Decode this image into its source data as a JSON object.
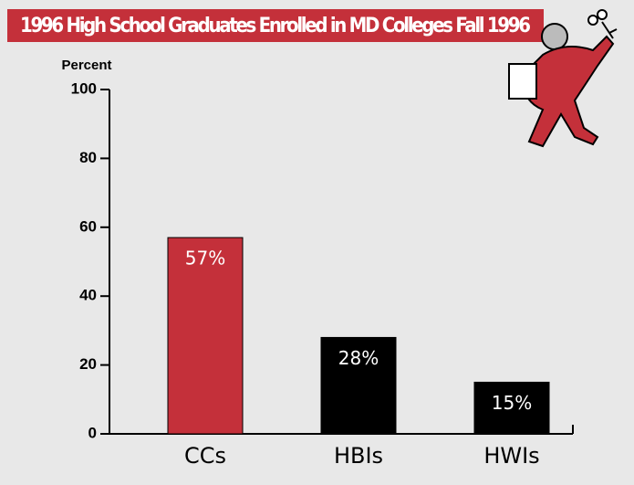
{
  "chart_data": {
    "type": "bar",
    "title": "1996 High School Graduates Enrolled in MD Colleges Fall 1996",
    "y_label": "Percent",
    "categories": [
      "CCs",
      "HBIs",
      "HWIs"
    ],
    "values": [
      57,
      28,
      15
    ],
    "value_labels": [
      "57%",
      "28%",
      "15%"
    ],
    "colors": [
      "#c4303a",
      "#000000",
      "#000000"
    ],
    "ylim": [
      0,
      100
    ],
    "yticks": [
      0,
      20,
      40,
      60,
      80,
      100
    ]
  }
}
